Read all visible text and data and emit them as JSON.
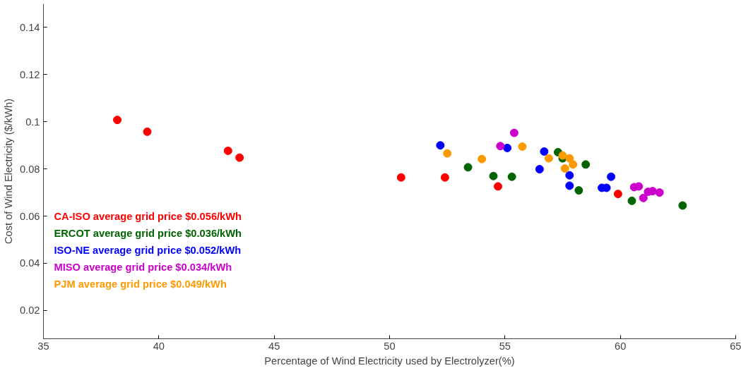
{
  "chart_data": {
    "type": "scatter",
    "xlabel": "Percentage of Wind Electricity used by Electrolyzer(%)",
    "ylabel": "Cost of Wind Electricity ($/kWh)",
    "xlim": [
      35,
      65
    ],
    "ylim": [
      0.008,
      0.15
    ],
    "xticks": [
      35,
      40,
      45,
      50,
      55,
      60,
      65
    ],
    "yticks": [
      0.02,
      0.04,
      0.06,
      0.08,
      0.1,
      0.12,
      0.14
    ],
    "grid": false,
    "marker": "circle",
    "legend": "bottom left",
    "series": [
      {
        "name": "CA-ISO average grid price $0.056/kWh",
        "color": "#ff0000",
        "x": [
          38.2,
          39.5,
          43.0,
          43.5,
          50.5,
          52.4,
          54.7,
          59.9
        ],
        "values": [
          0.1008,
          0.0958,
          0.0877,
          0.0848,
          0.0764,
          0.0764,
          0.0726,
          0.0694
        ]
      },
      {
        "name": "ERCOT average grid price $0.036/kWh",
        "color": "#006400",
        "x": [
          53.4,
          54.5,
          55.3,
          57.3,
          57.5,
          58.5,
          58.2,
          60.5,
          62.7
        ],
        "values": [
          0.0807,
          0.077,
          0.0767,
          0.0871,
          0.0845,
          0.0819,
          0.0709,
          0.0665,
          0.0645
        ]
      },
      {
        "name": "ISO-NE average grid price $0.052/kWh",
        "color": "#0000ff",
        "x": [
          52.2,
          55.1,
          56.7,
          56.5,
          57.8,
          57.8,
          59.2,
          59.4,
          59.6
        ],
        "values": [
          0.09,
          0.0889,
          0.0874,
          0.0799,
          0.0773,
          0.0729,
          0.072,
          0.072,
          0.0767
        ]
      },
      {
        "name": "MISO average grid price $0.034/kWh",
        "color": "#cc00cc",
        "x": [
          55.4,
          54.8,
          60.6,
          60.8,
          61.0,
          61.2,
          61.4,
          61.7
        ],
        "values": [
          0.0953,
          0.0897,
          0.0723,
          0.0726,
          0.0677,
          0.0703,
          0.0706,
          0.07
        ]
      },
      {
        "name": "PJM average grid price $0.049/kWh",
        "color": "#ff9900",
        "x": [
          52.5,
          54.0,
          55.75,
          56.9,
          57.5,
          57.8,
          57.95,
          57.6
        ],
        "values": [
          0.0866,
          0.0842,
          0.0895,
          0.0845,
          0.0857,
          0.0845,
          0.0819,
          0.0802
        ]
      }
    ]
  }
}
